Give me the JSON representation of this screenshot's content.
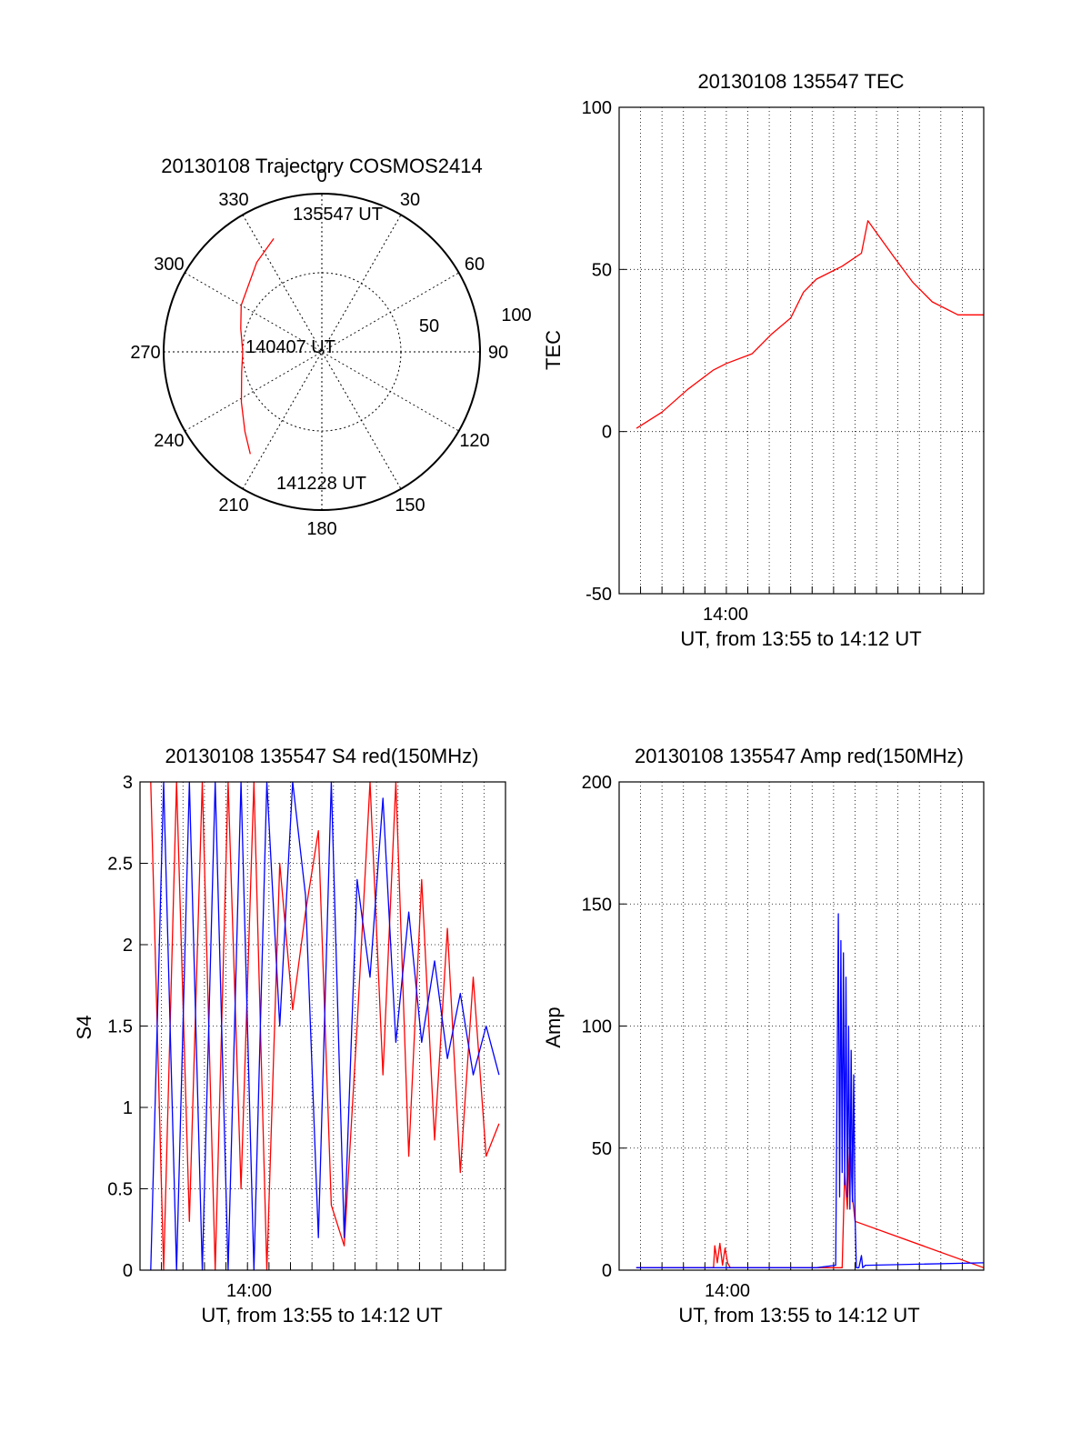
{
  "chart_data": [
    {
      "type": "polar",
      "title": "20130108 Trajectory COSMOS2414",
      "azimuth_labels": [
        "0",
        "30",
        "60",
        "90",
        "120",
        "150",
        "180",
        "210",
        "240",
        "270",
        "300",
        "330"
      ],
      "radial_labels": [
        "50",
        "100"
      ],
      "grid": true,
      "series": [
        {
          "color": "#ff0000",
          "points": [
            {
              "az": 337,
              "elev": 20
            },
            {
              "az": 324,
              "elev": 27
            },
            {
              "az": 300,
              "elev": 37
            },
            {
              "az": 286,
              "elev": 42
            },
            {
              "az": 270,
              "elev": 45
            },
            {
              "az": 256,
              "elev": 43
            },
            {
              "az": 238,
              "elev": 36
            },
            {
              "az": 224,
              "elev": 27
            },
            {
              "az": 215,
              "elev": 19
            }
          ]
        }
      ],
      "annotations": [
        "135547 UT",
        "140407 UT",
        "141228 UT"
      ]
    },
    {
      "type": "line",
      "title": "20130108 135547 TEC",
      "xlabel": "UT, from 13:55 to 14:12 UT",
      "ylabel": "TEC",
      "xlim": [
        13.9167,
        14.2
      ],
      "ylim": [
        -50,
        100
      ],
      "yticks": [
        "100",
        "50",
        "0",
        "-50"
      ],
      "xtick_labels": [
        "14:00"
      ],
      "grid": true,
      "series": [
        {
          "color": "#ff0000",
          "x": [
            13.9302,
            13.95,
            13.97,
            13.99,
            14.0,
            14.02,
            14.035,
            14.05,
            14.06,
            14.07,
            14.09,
            14.105,
            14.11,
            14.13,
            14.145,
            14.16,
            14.18,
            14.2
          ],
          "y": [
            1,
            6,
            13,
            19,
            21,
            24,
            30,
            35,
            43,
            47,
            51,
            55,
            65,
            54,
            46,
            40,
            36,
            36
          ]
        }
      ]
    },
    {
      "type": "line",
      "title": "20130108 135547 S4 red(150MHz)",
      "xlabel": "UT, from 13:55 to 14:12 UT",
      "ylabel": "S4",
      "xlim": [
        13.9167,
        14.2
      ],
      "ylim": [
        0,
        3
      ],
      "yticks": [
        "3",
        "2.5",
        "2",
        "1.5",
        "1",
        "0.5",
        "0"
      ],
      "xtick_labels": [
        "14:00"
      ],
      "grid": true,
      "series": [
        {
          "color": "#ff0000",
          "x": [
            13.925,
            13.935,
            13.945,
            13.955,
            13.965,
            13.975,
            13.985,
            13.995,
            14.005,
            14.015,
            14.025,
            14.035,
            14.045,
            14.055,
            14.065,
            14.075,
            14.085,
            14.095,
            14.105,
            14.115,
            14.125,
            14.135,
            14.145,
            14.155,
            14.165,
            14.175,
            14.185,
            14.195
          ],
          "y": [
            3,
            0,
            3,
            0.3,
            3,
            0,
            3,
            0.5,
            3,
            0,
            2.5,
            1.6,
            2.2,
            2.7,
            0.4,
            0.15,
            1.5,
            3,
            1.2,
            3,
            0.7,
            2.4,
            0.8,
            2.1,
            0.6,
            1.8,
            0.7,
            0.9
          ]
        },
        {
          "color": "#0000ff",
          "x": [
            13.925,
            13.935,
            13.945,
            13.955,
            13.965,
            13.975,
            13.985,
            13.995,
            14.005,
            14.015,
            14.025,
            14.035,
            14.045,
            14.055,
            14.065,
            14.075,
            14.085,
            14.095,
            14.105,
            14.115,
            14.125,
            14.135,
            14.145,
            14.155,
            14.165,
            14.175,
            14.185,
            14.195
          ],
          "y": [
            0,
            3,
            0,
            3,
            0,
            3,
            0,
            3,
            0,
            3,
            1.5,
            3,
            2.3,
            0.2,
            3,
            0.2,
            2.4,
            1.8,
            2.9,
            1.4,
            2.2,
            1.4,
            1.9,
            1.3,
            1.7,
            1.2,
            1.5,
            1.2
          ]
        }
      ]
    },
    {
      "type": "line",
      "title": "20130108 135547 Amp red(150MHz)",
      "xlabel": "UT, from 13:55 to 14:12 UT",
      "ylabel": "Amp",
      "xlim": [
        13.9167,
        14.2
      ],
      "ylim": [
        0,
        200
      ],
      "yticks": [
        "200",
        "150",
        "100",
        "50",
        "0"
      ],
      "xtick_labels": [
        "14:00"
      ],
      "grid": true,
      "series": [
        {
          "color": "#ff0000",
          "x": [
            13.93,
            13.99,
            13.991,
            13.993,
            13.995,
            13.997,
            13.999,
            14.001,
            14.003,
            14.09,
            14.092,
            14.094,
            14.096,
            14.098,
            14.1,
            14.2
          ],
          "y": [
            1,
            1,
            10,
            3,
            11,
            2,
            9,
            3,
            1,
            1,
            40,
            25,
            55,
            30,
            20,
            1
          ]
        },
        {
          "color": "#0000ff",
          "x": [
            13.93,
            14.07,
            14.085,
            14.087,
            14.088,
            14.089,
            14.09,
            14.091,
            14.092,
            14.093,
            14.094,
            14.095,
            14.096,
            14.097,
            14.098,
            14.099,
            14.1,
            14.101,
            14.103,
            14.105,
            14.106,
            14.108,
            14.11,
            14.2
          ],
          "y": [
            1,
            1,
            2,
            146,
            30,
            135,
            40,
            130,
            35,
            120,
            30,
            100,
            25,
            90,
            28,
            80,
            22,
            1,
            1,
            6,
            1,
            2,
            2,
            3
          ]
        }
      ]
    }
  ]
}
